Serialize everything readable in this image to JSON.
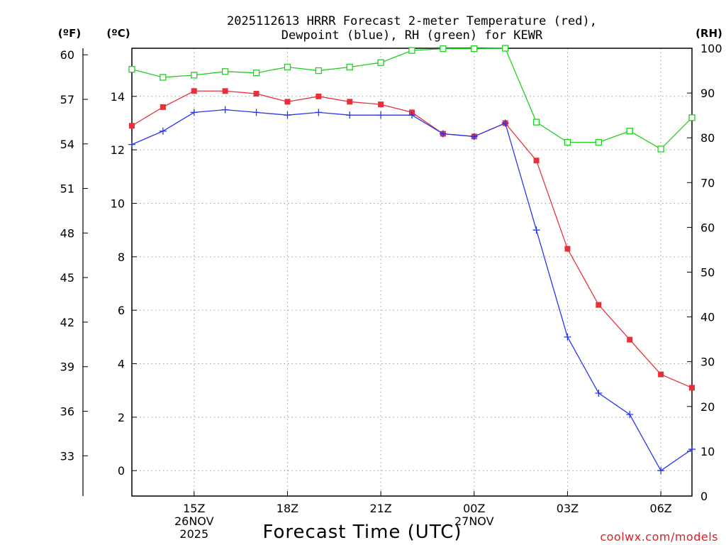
{
  "chart_data": {
    "type": "line",
    "title_lines": [
      "2025112613 HRRR Forecast 2-meter Temperature (red),",
      "Dewpoint (blue), RH (green) for KEWR"
    ],
    "xlabel": "Forecast Time (UTC)",
    "watermark": "coolwx.com/models",
    "unit_labels": {
      "fahrenheit": "(ºF)",
      "celsius": "(ºC)",
      "rh": "(RH)"
    },
    "x_hours": [
      13,
      14,
      15,
      16,
      17,
      18,
      19,
      20,
      21,
      22,
      23,
      24,
      25,
      26,
      27,
      28,
      29,
      30,
      31
    ],
    "x_range": [
      13,
      31
    ],
    "x_ticks": [
      {
        "hour": 15,
        "lines": [
          "15Z",
          "26NOV",
          "2025"
        ]
      },
      {
        "hour": 18,
        "lines": [
          "18Z"
        ]
      },
      {
        "hour": 21,
        "lines": [
          "21Z"
        ]
      },
      {
        "hour": 24,
        "lines": [
          "00Z",
          "27NOV"
        ]
      },
      {
        "hour": 27,
        "lines": [
          "03Z"
        ]
      },
      {
        "hour": 30,
        "lines": [
          "06Z"
        ]
      }
    ],
    "celsius_axis": {
      "range": [
        -0.95,
        15.8
      ],
      "ticks": [
        "0",
        "2",
        "4",
        "6",
        "8",
        "10",
        "12",
        "14"
      ]
    },
    "fahrenheit_axis": {
      "ticks": [
        "33",
        "36",
        "39",
        "42",
        "45",
        "48",
        "51",
        "54",
        "57",
        "60"
      ]
    },
    "rh_axis": {
      "range": [
        0,
        100
      ],
      "ticks": [
        "0",
        "10",
        "20",
        "30",
        "40",
        "50",
        "60",
        "70",
        "80",
        "90",
        "100"
      ]
    },
    "series": [
      {
        "name": "2-meter Temperature",
        "axis": "celsius",
        "color": "#e8303a",
        "marker": "filled-square",
        "values": [
          12.9,
          13.6,
          14.2,
          14.2,
          14.1,
          13.8,
          14.0,
          13.8,
          13.7,
          13.4,
          12.6,
          12.5,
          13.0,
          11.6,
          8.3,
          6.2,
          4.9,
          3.6,
          3.1
        ]
      },
      {
        "name": "Dewpoint",
        "axis": "celsius",
        "color": "#2838e8",
        "marker": "plus",
        "values": [
          12.2,
          12.7,
          13.4,
          13.5,
          13.4,
          13.3,
          13.4,
          13.3,
          13.3,
          13.3,
          12.6,
          12.5,
          13.0,
          9.0,
          5.0,
          2.9,
          2.1,
          0.0,
          0.8
        ]
      },
      {
        "name": "Relative Humidity",
        "axis": "rh",
        "color": "#20d020",
        "marker": "open-square",
        "values": [
          95.3,
          93.5,
          94.0,
          94.8,
          94.5,
          95.8,
          95.0,
          95.8,
          96.8,
          99.5,
          99.9,
          99.9,
          100.0,
          83.5,
          79.0,
          79.0,
          81.5,
          77.5,
          84.5
        ]
      }
    ]
  }
}
